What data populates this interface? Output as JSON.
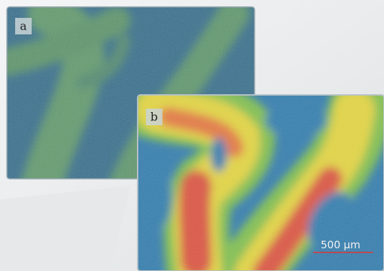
{
  "panels": [
    {
      "label": "a"
    },
    {
      "label": "b"
    }
  ],
  "scale_bar": {
    "label": "500 μm"
  }
}
